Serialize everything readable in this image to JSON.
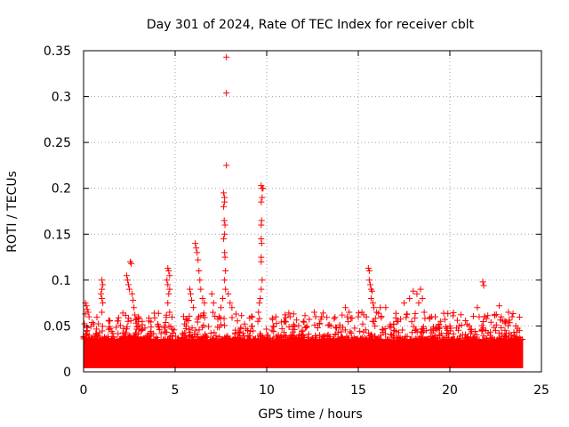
{
  "chart_data": {
    "type": "scatter",
    "title": "Day 301 of 2024, Rate Of TEC Index for receiver cblt",
    "xlabel": "GPS time / hours",
    "ylabel": "ROTI / TECUs",
    "xlim": [
      0,
      25
    ],
    "ylim": [
      0,
      0.35
    ],
    "xticks": [
      "0",
      "5",
      "10",
      "15",
      "20",
      "25"
    ],
    "yticks": [
      "0",
      "0.05",
      "0.1",
      "0.15",
      "0.2",
      "0.25",
      "0.3",
      "0.35"
    ],
    "grid": true,
    "marker": "plus",
    "color": "#ff0000",
    "background_band": {
      "x_start": 0,
      "x_end": 24,
      "y_min": 0.004,
      "y_max": 0.035
    },
    "series": [
      {
        "values_described_as": "x = GPS hours, y = ROTI",
        "points": [
          [
            0.1,
            0.075
          ],
          [
            0.15,
            0.072
          ],
          [
            0.2,
            0.068
          ],
          [
            0.25,
            0.065
          ],
          [
            0.3,
            0.06
          ],
          [
            0.2,
            0.045
          ],
          [
            0.3,
            0.04
          ],
          [
            1.0,
            0.1
          ],
          [
            1.05,
            0.095
          ],
          [
            1.0,
            0.09
          ],
          [
            0.95,
            0.085
          ],
          [
            1.0,
            0.08
          ],
          [
            1.05,
            0.075
          ],
          [
            1.0,
            0.065
          ],
          [
            2.35,
            0.105
          ],
          [
            2.4,
            0.1
          ],
          [
            2.45,
            0.095
          ],
          [
            2.5,
            0.09
          ],
          [
            2.55,
            0.12
          ],
          [
            2.6,
            0.118
          ],
          [
            2.65,
            0.085
          ],
          [
            2.7,
            0.078
          ],
          [
            2.75,
            0.07
          ],
          [
            2.8,
            0.062
          ],
          [
            3.0,
            0.06
          ],
          [
            3.2,
            0.055
          ],
          [
            4.6,
            0.113
          ],
          [
            4.65,
            0.11
          ],
          [
            4.7,
            0.105
          ],
          [
            4.55,
            0.1
          ],
          [
            4.6,
            0.095
          ],
          [
            4.7,
            0.09
          ],
          [
            4.65,
            0.085
          ],
          [
            4.6,
            0.075
          ],
          [
            4.7,
            0.065
          ],
          [
            5.8,
            0.09
          ],
          [
            5.85,
            0.085
          ],
          [
            5.9,
            0.078
          ],
          [
            6.0,
            0.07
          ],
          [
            6.1,
            0.14
          ],
          [
            6.15,
            0.135
          ],
          [
            6.2,
            0.13
          ],
          [
            6.25,
            0.122
          ],
          [
            6.3,
            0.11
          ],
          [
            6.35,
            0.1
          ],
          [
            6.4,
            0.09
          ],
          [
            6.5,
            0.08
          ],
          [
            6.6,
            0.075
          ],
          [
            7.0,
            0.085
          ],
          [
            7.1,
            0.075
          ],
          [
            7.4,
            0.06
          ],
          [
            7.5,
            0.07
          ],
          [
            7.6,
            0.08
          ],
          [
            7.65,
            0.195
          ],
          [
            7.7,
            0.19
          ],
          [
            7.7,
            0.185
          ],
          [
            7.65,
            0.18
          ],
          [
            7.68,
            0.165
          ],
          [
            7.72,
            0.16
          ],
          [
            7.7,
            0.15
          ],
          [
            7.65,
            0.145
          ],
          [
            7.7,
            0.13
          ],
          [
            7.72,
            0.125
          ],
          [
            7.75,
            0.11
          ],
          [
            7.7,
            0.1
          ],
          [
            7.75,
            0.09
          ],
          [
            7.8,
            0.343
          ],
          [
            7.8,
            0.304
          ],
          [
            7.8,
            0.225
          ],
          [
            7.9,
            0.085
          ],
          [
            8.0,
            0.075
          ],
          [
            8.1,
            0.07
          ],
          [
            9.7,
            0.203
          ],
          [
            9.75,
            0.2
          ],
          [
            9.8,
            0.2
          ],
          [
            9.75,
            0.19
          ],
          [
            9.7,
            0.185
          ],
          [
            9.72,
            0.165
          ],
          [
            9.7,
            0.16
          ],
          [
            9.7,
            0.145
          ],
          [
            9.72,
            0.14
          ],
          [
            9.7,
            0.125
          ],
          [
            9.7,
            0.12
          ],
          [
            9.75,
            0.1
          ],
          [
            9.7,
            0.09
          ],
          [
            9.65,
            0.08
          ],
          [
            9.6,
            0.075
          ],
          [
            9.55,
            0.065
          ],
          [
            9.6,
            0.058
          ],
          [
            10.5,
            0.06
          ],
          [
            11.0,
            0.055
          ],
          [
            11.5,
            0.05
          ],
          [
            12.0,
            0.055
          ],
          [
            12.6,
            0.065
          ],
          [
            13.0,
            0.06
          ],
          [
            13.5,
            0.05
          ],
          [
            14.3,
            0.07
          ],
          [
            14.5,
            0.065
          ],
          [
            15.0,
            0.06
          ],
          [
            15.2,
            0.065
          ],
          [
            15.55,
            0.113
          ],
          [
            15.6,
            0.11
          ],
          [
            15.6,
            0.1
          ],
          [
            15.65,
            0.095
          ],
          [
            15.7,
            0.09
          ],
          [
            15.75,
            0.088
          ],
          [
            15.7,
            0.08
          ],
          [
            15.8,
            0.075
          ],
          [
            15.85,
            0.07
          ],
          [
            16.0,
            0.065
          ],
          [
            16.2,
            0.07
          ],
          [
            16.5,
            0.07
          ],
          [
            17.5,
            0.075
          ],
          [
            17.8,
            0.08
          ],
          [
            18.0,
            0.088
          ],
          [
            18.2,
            0.085
          ],
          [
            18.4,
            0.09
          ],
          [
            18.5,
            0.08
          ],
          [
            18.3,
            0.075
          ],
          [
            18.6,
            0.065
          ],
          [
            19.0,
            0.06
          ],
          [
            19.2,
            0.06
          ],
          [
            19.5,
            0.055
          ],
          [
            20.0,
            0.05
          ],
          [
            20.5,
            0.05
          ],
          [
            21.5,
            0.07
          ],
          [
            21.6,
            0.06
          ],
          [
            21.8,
            0.098
          ],
          [
            21.85,
            0.094
          ],
          [
            21.9,
            0.06
          ],
          [
            22.0,
            0.058
          ],
          [
            22.5,
            0.045
          ],
          [
            22.7,
            0.072
          ],
          [
            22.8,
            0.06
          ],
          [
            23.0,
            0.055
          ],
          [
            23.2,
            0.065
          ],
          [
            23.4,
            0.06
          ],
          [
            23.6,
            0.05
          ],
          [
            23.8,
            0.045
          ]
        ]
      }
    ]
  }
}
